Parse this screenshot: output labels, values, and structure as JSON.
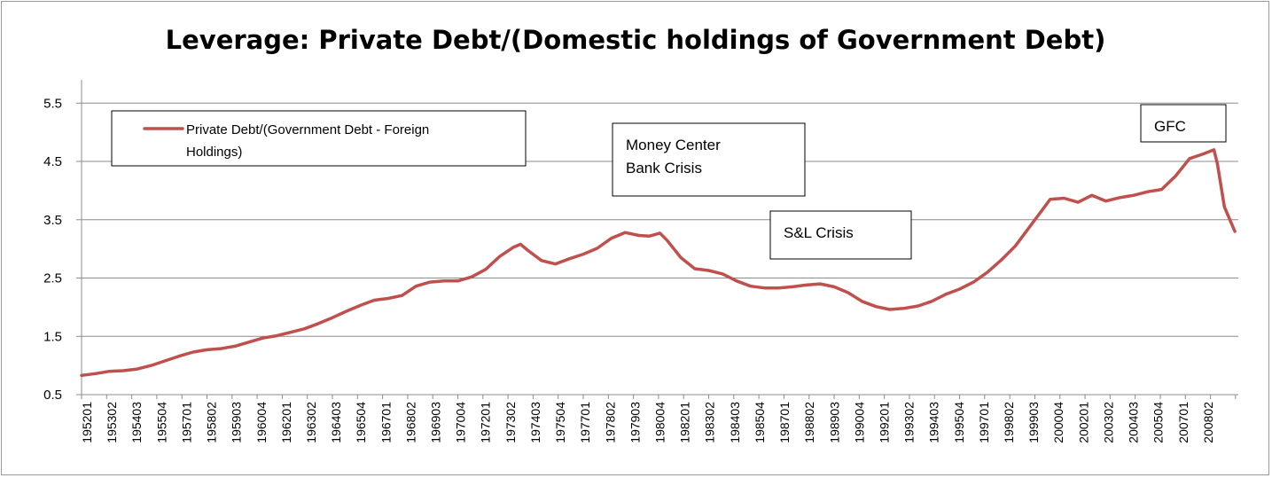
{
  "chart_data": {
    "type": "line",
    "title": "Leverage: Private Debt/(Domestic holdings of Government Debt)",
    "xlabel": "",
    "ylabel": "",
    "ylim": [
      0.5,
      5.9
    ],
    "yticks": [
      "0.5",
      "1.5",
      "2.5",
      "3.5",
      "4.5",
      "5.5"
    ],
    "ytick_values": [
      0.5,
      1.5,
      2.5,
      3.5,
      4.5,
      5.5
    ],
    "xticks": [
      "195201",
      "195302",
      "195403",
      "195504",
      "195701",
      "195802",
      "195903",
      "196004",
      "196201",
      "196302",
      "196403",
      "196504",
      "196701",
      "196802",
      "196903",
      "197004",
      "197201",
      "197302",
      "197403",
      "197504",
      "197701",
      "197802",
      "197903",
      "198004",
      "198201",
      "198302",
      "198403",
      "198504",
      "198701",
      "198802",
      "198903",
      "199004",
      "199201",
      "199302",
      "199403",
      "199504",
      "199701",
      "199802",
      "199903",
      "200004",
      "200201",
      "200302",
      "200403",
      "200504",
      "200701",
      "200802"
    ],
    "x_start_quarter": "195201",
    "grid": "horizontal",
    "legend_position": "top-left",
    "series": [
      {
        "name": "Private Debt/(Government Debt - Foreign Holdings)",
        "color": "#c0504d",
        "points": [
          [
            0,
            0.83
          ],
          [
            4,
            0.86
          ],
          [
            8,
            0.9
          ],
          [
            12,
            0.91
          ],
          [
            16,
            0.94
          ],
          [
            20,
            1.0
          ],
          [
            24,
            1.08
          ],
          [
            28,
            1.16
          ],
          [
            32,
            1.23
          ],
          [
            36,
            1.27
          ],
          [
            40,
            1.29
          ],
          [
            44,
            1.33
          ],
          [
            48,
            1.4
          ],
          [
            52,
            1.47
          ],
          [
            56,
            1.51
          ],
          [
            60,
            1.57
          ],
          [
            64,
            1.63
          ],
          [
            68,
            1.72
          ],
          [
            72,
            1.82
          ],
          [
            76,
            1.93
          ],
          [
            80,
            2.03
          ],
          [
            84,
            2.12
          ],
          [
            88,
            2.15
          ],
          [
            92,
            2.2
          ],
          [
            96,
            2.36
          ],
          [
            100,
            2.43
          ],
          [
            104,
            2.45
          ],
          [
            108,
            2.45
          ],
          [
            112,
            2.52
          ],
          [
            116,
            2.65
          ],
          [
            120,
            2.87
          ],
          [
            124,
            3.03
          ],
          [
            126,
            3.08
          ],
          [
            128,
            2.98
          ],
          [
            132,
            2.8
          ],
          [
            136,
            2.74
          ],
          [
            140,
            2.83
          ],
          [
            144,
            2.91
          ],
          [
            148,
            3.01
          ],
          [
            152,
            3.18
          ],
          [
            156,
            3.28
          ],
          [
            160,
            3.23
          ],
          [
            163,
            3.22
          ],
          [
            166,
            3.27
          ],
          [
            168,
            3.15
          ],
          [
            172,
            2.85
          ],
          [
            176,
            2.66
          ],
          [
            180,
            2.63
          ],
          [
            184,
            2.57
          ],
          [
            188,
            2.45
          ],
          [
            192,
            2.36
          ],
          [
            196,
            2.33
          ],
          [
            200,
            2.33
          ],
          [
            204,
            2.35
          ],
          [
            208,
            2.38
          ],
          [
            212,
            2.4
          ],
          [
            216,
            2.35
          ],
          [
            220,
            2.25
          ],
          [
            224,
            2.1
          ],
          [
            228,
            2.01
          ],
          [
            232,
            1.96
          ],
          [
            236,
            1.98
          ],
          [
            240,
            2.02
          ],
          [
            244,
            2.1
          ],
          [
            248,
            2.22
          ],
          [
            252,
            2.31
          ],
          [
            256,
            2.43
          ],
          [
            260,
            2.6
          ],
          [
            264,
            2.81
          ],
          [
            268,
            3.05
          ],
          [
            272,
            3.37
          ],
          [
            276,
            3.69
          ],
          [
            278,
            3.85
          ],
          [
            282,
            3.87
          ],
          [
            286,
            3.8
          ],
          [
            290,
            3.92
          ],
          [
            294,
            3.82
          ],
          [
            298,
            3.88
          ],
          [
            302,
            3.92
          ],
          [
            306,
            3.98
          ],
          [
            310,
            4.02
          ],
          [
            314,
            4.25
          ],
          [
            318,
            4.55
          ],
          [
            322,
            4.63
          ],
          [
            325,
            4.7
          ],
          [
            326,
            4.46
          ],
          [
            328,
            3.72
          ],
          [
            331,
            3.3
          ]
        ]
      }
    ],
    "annotations": [
      {
        "text": "Money Center Bank Crisis",
        "lines": [
          "Money Center",
          "Bank Crisis"
        ]
      },
      {
        "text": "S&L Crisis",
        "lines": [
          "S&L Crisis"
        ]
      },
      {
        "text": "GFC",
        "lines": [
          "GFC"
        ]
      }
    ],
    "legend_lines": [
      "Private Debt/(Government Debt - Foreign",
      "Holdings)"
    ]
  }
}
